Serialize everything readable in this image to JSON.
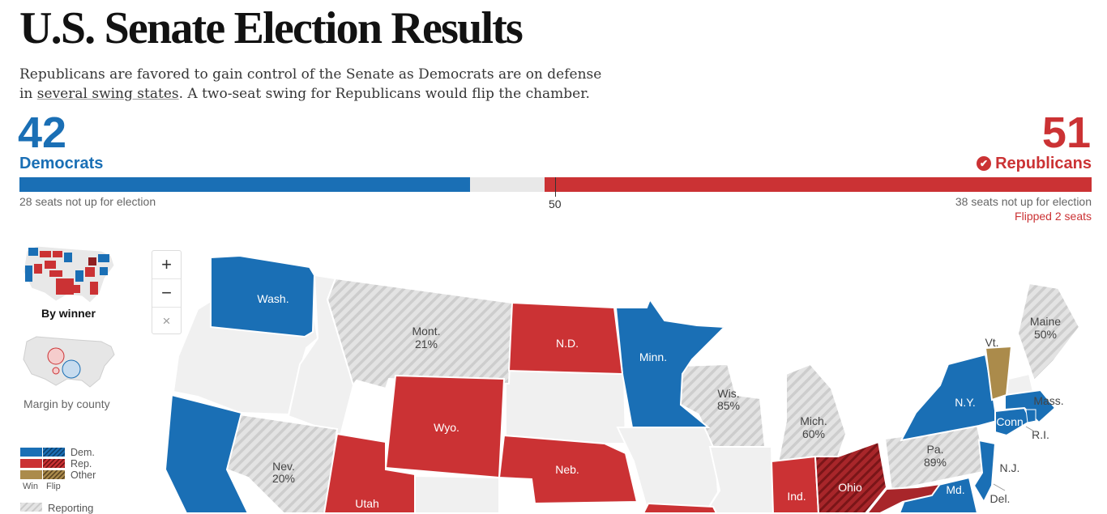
{
  "header": {
    "title": "U.S. Senate Election Results",
    "lede_part1": "Republicans are favored to gain control of the Senate as Democrats are on defense in ",
    "lede_link": "several swing states",
    "lede_part2": ". A two-seat swing for Republicans would flip the chamber."
  },
  "tally": {
    "dem_count": "42",
    "dem_label": "Democrats",
    "rep_count": "51",
    "rep_label": "Republicans",
    "dem_seats": 42,
    "rep_seats": 51,
    "total_seats": 100,
    "majority_marker": "50",
    "dem_not_up": "28 seats not up for election",
    "rep_not_up": "38 seats not up for election",
    "rep_flipped": "Flipped 2 seats",
    "winner_check": "✔"
  },
  "colors": {
    "dem": "#1a6fb5",
    "rep": "#cb3234",
    "other": "#ab8b4b",
    "reporting": "#dcdcdc",
    "empty": "#f0f0f0"
  },
  "map_views": {
    "winner_label": "By winner",
    "margin_label": "Margin by county"
  },
  "zoom": {
    "in": "+",
    "out": "−",
    "reset": "×"
  },
  "legend": {
    "dem": "Dem.",
    "rep": "Rep.",
    "other": "Other",
    "win": "Win",
    "flip": "Flip",
    "reporting": "Reporting"
  },
  "states": {
    "wash": "Wash.",
    "mont": "Mont.",
    "mont_pct": "21%",
    "nd": "N.D.",
    "minn": "Minn.",
    "wis": "Wis.",
    "wis_pct": "85%",
    "mich": "Mich.",
    "mich_pct": "60%",
    "wyo": "Wyo.",
    "neb": "Neb.",
    "nev": "Nev.",
    "nev_pct": "20%",
    "utah": "Utah",
    "ind": "Ind.",
    "ohio": "Ohio",
    "pa": "Pa.",
    "pa_pct": "89%",
    "ny": "N.Y.",
    "vt": "Vt.",
    "maine": "Maine",
    "maine_pct": "50%",
    "mass": "Mass.",
    "conn": "Conn.",
    "ri": "R.I.",
    "nj": "N.J.",
    "md": "Md.",
    "del": "Del."
  }
}
